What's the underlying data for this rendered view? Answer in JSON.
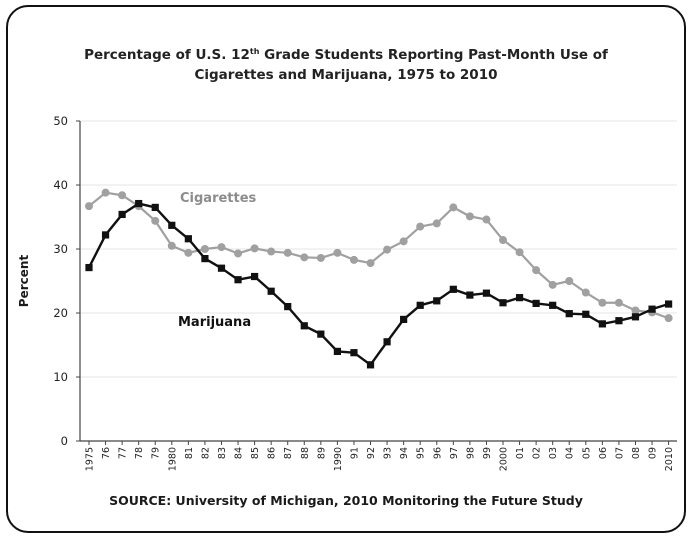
{
  "chart_data": {
    "type": "line",
    "title_line1": "Percentage of U.S. 12",
    "title_sup": "th",
    "title_line1_rest": " Grade Students Reporting Past-Month Use of",
    "title_line2": "Cigarettes and Marijuana, 1975 to 2010",
    "ylabel": "Percent",
    "source": "SOURCE: University of Michigan, 2010 Monitoring the Future Study",
    "ylim": [
      0,
      50
    ],
    "yticks": [
      "0",
      "10",
      "20",
      "30",
      "40",
      "50"
    ],
    "grid": true,
    "x_tick_labels": [
      "1975",
      "76",
      "77",
      "78",
      "79",
      "1980",
      "81",
      "82",
      "83",
      "84",
      "85",
      "86",
      "87",
      "88",
      "89",
      "1990",
      "91",
      "92",
      "93",
      "94",
      "95",
      "96",
      "97",
      "98",
      "99",
      "2000",
      "01",
      "02",
      "03",
      "04",
      "05",
      "06",
      "07",
      "08",
      "09",
      "2010"
    ],
    "x": [
      1975,
      1976,
      1977,
      1978,
      1979,
      1980,
      1981,
      1982,
      1983,
      1984,
      1985,
      1986,
      1987,
      1988,
      1989,
      1990,
      1991,
      1992,
      1993,
      1994,
      1995,
      1996,
      1997,
      1998,
      1999,
      2000,
      2001,
      2002,
      2003,
      2004,
      2005,
      2006,
      2007,
      2008,
      2009,
      2010
    ],
    "series": [
      {
        "name": "Cigarettes",
        "color": "#a0a0a0",
        "marker": "circle",
        "label_color": "#8c8c8c",
        "values": [
          36.7,
          38.8,
          38.4,
          36.7,
          34.4,
          30.5,
          29.4,
          30.0,
          30.3,
          29.3,
          30.1,
          29.6,
          29.4,
          28.7,
          28.6,
          29.4,
          28.3,
          27.8,
          29.9,
          31.2,
          33.5,
          34.0,
          36.5,
          35.1,
          34.6,
          31.4,
          29.5,
          26.7,
          24.4,
          25.0,
          23.2,
          21.6,
          21.6,
          20.4,
          20.1,
          19.2
        ]
      },
      {
        "name": "Marijuana",
        "color": "#111111",
        "marker": "square",
        "label_color": "#111111",
        "values": [
          27.1,
          32.2,
          35.4,
          37.1,
          36.5,
          33.7,
          31.6,
          28.5,
          27.0,
          25.2,
          25.7,
          23.4,
          21.0,
          18.0,
          16.7,
          14.0,
          13.8,
          11.9,
          15.5,
          19.0,
          21.2,
          21.9,
          23.7,
          22.8,
          23.1,
          21.6,
          22.4,
          21.5,
          21.2,
          19.9,
          19.8,
          18.3,
          18.8,
          19.4,
          20.6,
          21.4
        ]
      }
    ]
  }
}
